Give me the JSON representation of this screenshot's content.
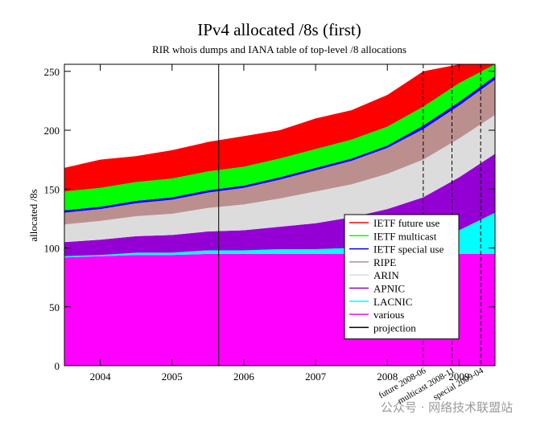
{
  "chart_data": {
    "type": "stacked-area",
    "title": "IPv4 allocated /8s (first)",
    "subtitle": "RIR whois dumps and IANA table of top-level /8 allocations",
    "y_label": "allocated /8s",
    "x": [
      2003.5,
      2004,
      2004.5,
      2005,
      2005.5,
      2006,
      2006.5,
      2007,
      2007.5,
      2008,
      2008.5,
      2009,
      2009.5
    ],
    "series": [
      {
        "name": "various",
        "color": "#ff00ff",
        "values": [
          92,
          93,
          94,
          94,
          95,
          95,
          95,
          95,
          95,
          95,
          95,
          95,
          95
        ]
      },
      {
        "name": "LACNIC",
        "color": "#00ffff",
        "values": [
          1,
          1,
          2,
          2,
          3,
          3,
          4,
          4,
          5,
          6,
          10,
          20,
          35
        ]
      },
      {
        "name": "APNIC",
        "color": "#9400d3",
        "values": [
          12,
          13,
          14,
          15,
          16,
          17,
          19,
          22,
          26,
          32,
          38,
          45,
          50
        ]
      },
      {
        "name": "ARIN",
        "color": "#dcdcdc",
        "values": [
          15,
          16,
          17,
          18,
          20,
          22,
          24,
          27,
          28,
          30,
          32,
          33,
          33
        ]
      },
      {
        "name": "RIPE",
        "color": "#bc8f8f",
        "values": [
          10,
          10,
          11,
          12,
          13,
          14,
          16,
          18,
          20,
          22,
          26,
          28,
          30
        ]
      },
      {
        "name": "IETF special use",
        "color": "#0000ff",
        "values": [
          2,
          2,
          2,
          2,
          2,
          2,
          2,
          2,
          2,
          2,
          3,
          3,
          3
        ]
      },
      {
        "name": "IETF multicast",
        "color": "#00ff00",
        "values": [
          16,
          16,
          16,
          16,
          16,
          16,
          16,
          16,
          16,
          16,
          16,
          16,
          10
        ]
      },
      {
        "name": "IETF future use",
        "color": "#ff0000",
        "values": [
          20,
          24,
          22,
          24,
          25,
          26,
          24,
          26,
          25,
          27,
          30,
          16,
          0
        ]
      }
    ],
    "projection": {
      "name": "projection",
      "x": 2005.65,
      "color": "#000000"
    },
    "markers": [
      {
        "x": 2008.5,
        "label": "future 2008-06"
      },
      {
        "x": 2008.9,
        "label": "multicast 2008-11"
      },
      {
        "x": 2009.3,
        "label": "special 2009-04"
      }
    ],
    "xlim": [
      2003.5,
      2009.5
    ],
    "xticks": [
      2004,
      2005,
      2006,
      2007,
      2008,
      2009
    ],
    "ylim": [
      0,
      256
    ],
    "yticks": [
      0,
      50,
      100,
      150,
      200,
      250
    ],
    "legend": "right",
    "watermark": "公众号 · 网络技术联盟站"
  }
}
